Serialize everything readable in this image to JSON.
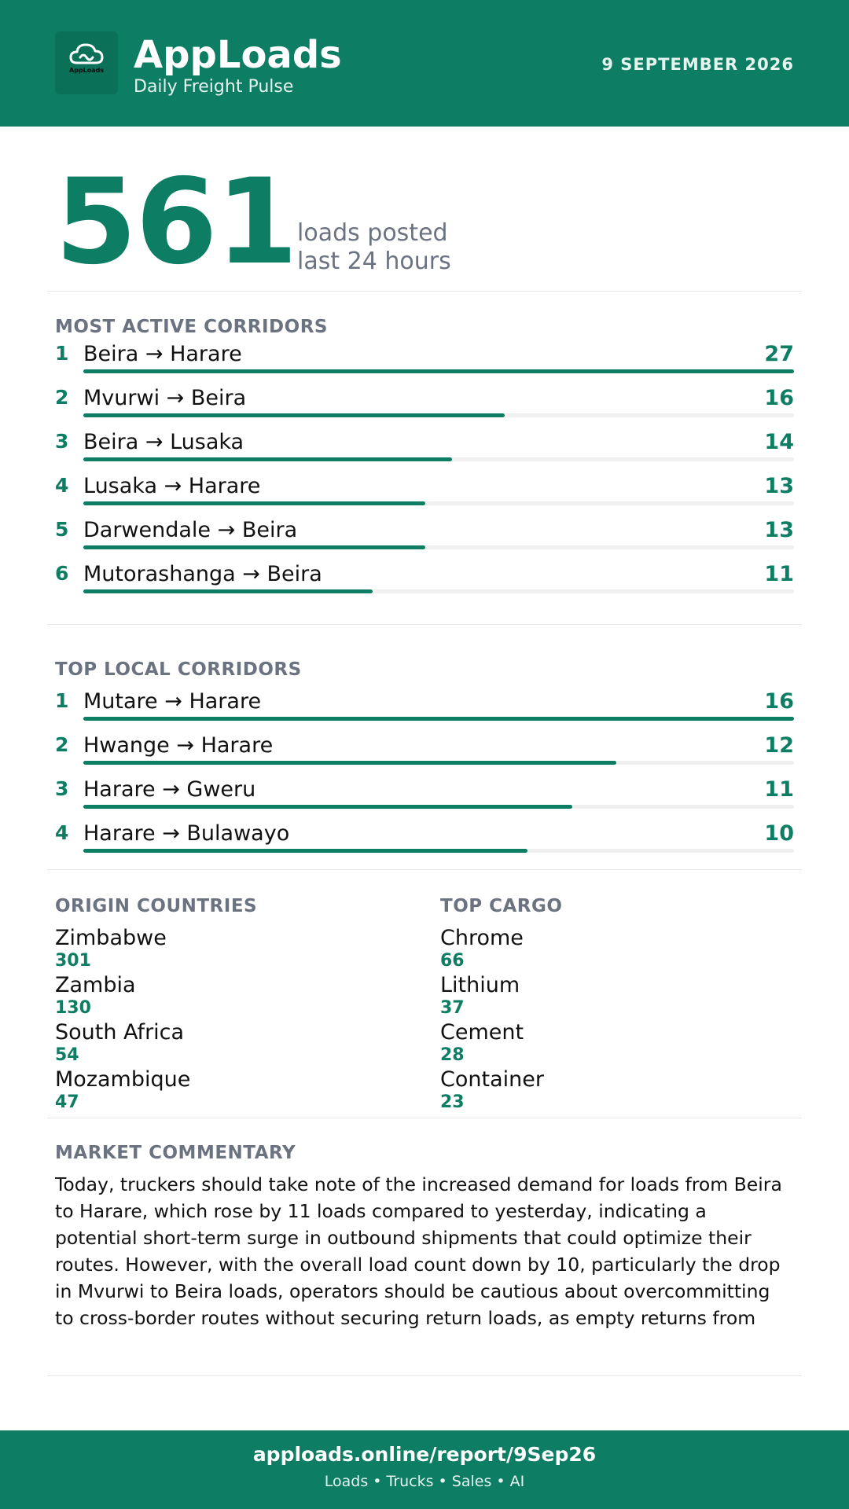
{
  "header": {
    "logo_text": "AppLoads",
    "brand": "AppLoads",
    "tagline": "Daily Freight Pulse",
    "date": "9 SEPTEMBER 2026"
  },
  "kpi": {
    "value": "561",
    "label_line1": "loads posted",
    "label_line2": "last 24 hours"
  },
  "most_active": {
    "title": "MOST ACTIVE CORRIDORS",
    "max": 27,
    "items": [
      {
        "rank": "1",
        "route": "Beira → Harare",
        "count": 27
      },
      {
        "rank": "2",
        "route": "Mvurwi → Beira",
        "count": 16
      },
      {
        "rank": "3",
        "route": "Beira → Lusaka",
        "count": 14
      },
      {
        "rank": "4",
        "route": "Lusaka → Harare",
        "count": 13
      },
      {
        "rank": "5",
        "route": "Darwendale → Beira",
        "count": 13
      },
      {
        "rank": "6",
        "route": "Mutorashanga → Beira",
        "count": 11
      }
    ]
  },
  "top_local": {
    "title": "TOP LOCAL CORRIDORS",
    "max": 16,
    "items": [
      {
        "rank": "1",
        "route": "Mutare → Harare",
        "count": 16
      },
      {
        "rank": "2",
        "route": "Hwange → Harare",
        "count": 12
      },
      {
        "rank": "3",
        "route": "Harare → Gweru",
        "count": 11
      },
      {
        "rank": "4",
        "route": "Harare → Bulawayo",
        "count": 10
      }
    ]
  },
  "origin_countries": {
    "title": "ORIGIN COUNTRIES",
    "items": [
      {
        "name": "Zimbabwe",
        "value": "301"
      },
      {
        "name": "Zambia",
        "value": "130"
      },
      {
        "name": "South Africa",
        "value": "54"
      },
      {
        "name": "Mozambique",
        "value": "47"
      }
    ]
  },
  "top_cargo": {
    "title": "TOP CARGO",
    "items": [
      {
        "name": "Chrome",
        "value": "66"
      },
      {
        "name": "Lithium",
        "value": "37"
      },
      {
        "name": "Cement",
        "value": "28"
      },
      {
        "name": "Container",
        "value": "23"
      }
    ]
  },
  "commentary": {
    "title": "MARKET COMMENTARY",
    "text": "Today, truckers should take note of the increased demand for loads from Beira to Harare, which rose by 11 loads compared to yesterday, indicating a potential short-term surge in outbound shipments that could optimize their routes. However, with the overall load count down by 10, particularly the drop in Mvurwi to Beira loads, operators should be cautious about overcommitting to cross-border routes without securing return loads, as empty returns from Beira could impact profitability. Given the current"
  },
  "footer": {
    "url": "apploads.online/report/9Sep26",
    "sub": "Loads • Trucks • Sales • AI"
  },
  "colors": {
    "brand_green": "#0d7d63",
    "muted_gray": "#6b7280"
  }
}
